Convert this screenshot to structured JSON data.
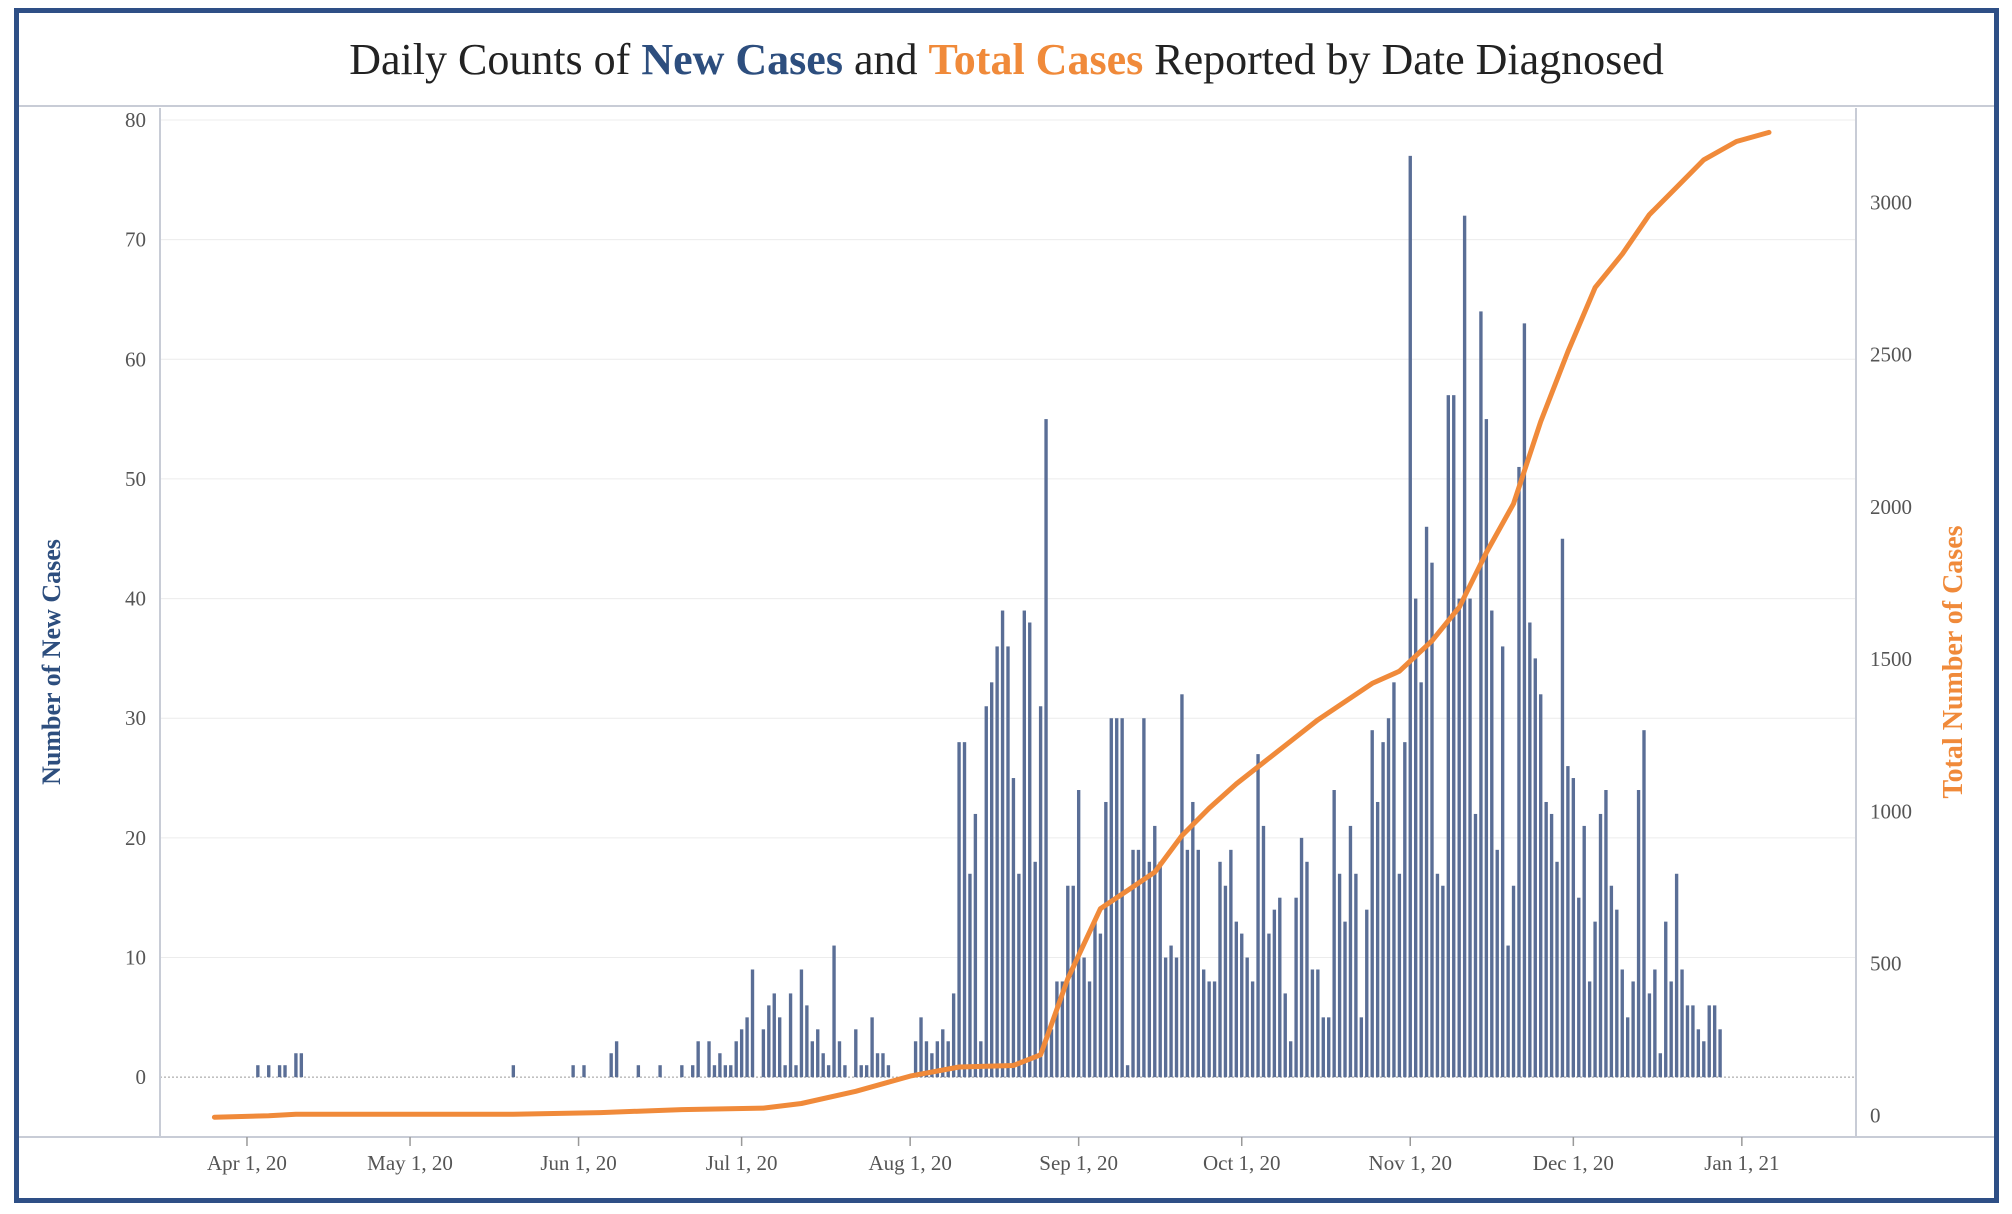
{
  "title": {
    "part1": "Daily Counts of ",
    "part2": "New Cases",
    "part3": " and ",
    "part4": "Total Cases",
    "part5": " Reported by Date Diagnosed"
  },
  "colors": {
    "bars": "#5a6e96",
    "line": "#f08a3a",
    "frame": "#2e4f86",
    "left_title": "#2d4e7e",
    "right_title": "#f08a3a"
  },
  "chart_data": {
    "type": "bar",
    "title": "Daily Counts of New Cases and Total Cases Reported by Date Diagnosed",
    "xlabel": "",
    "ylabel": "Number of New Cases",
    "y2label": "Total Number of Cases",
    "ylim": [
      -5,
      81
    ],
    "y2lim": [
      -70,
      3310
    ],
    "yticks": [
      0,
      10,
      20,
      30,
      40,
      50,
      60,
      70,
      80
    ],
    "y2ticks": [
      0,
      500,
      1000,
      1500,
      2000,
      2500,
      3000
    ],
    "xticks": [
      {
        "date": "2020-04-01",
        "label": "Apr 1, 20"
      },
      {
        "date": "2020-05-01",
        "label": "May 1, 20"
      },
      {
        "date": "2020-06-01",
        "label": "Jun 1, 20"
      },
      {
        "date": "2020-07-01",
        "label": "Jul 1, 20"
      },
      {
        "date": "2020-08-01",
        "label": "Aug 1, 20"
      },
      {
        "date": "2020-09-01",
        "label": "Sep 1, 20"
      },
      {
        "date": "2020-10-01",
        "label": "Oct 1, 20"
      },
      {
        "date": "2020-11-01",
        "label": "Nov 1, 20"
      },
      {
        "date": "2020-12-01",
        "label": "Dec 1, 20"
      },
      {
        "date": "2021-01-01",
        "label": "Jan 1, 21"
      }
    ],
    "start_date": "2020-03-26",
    "series": [
      {
        "name": "New Cases",
        "type": "bar",
        "axis": "left",
        "values": [
          0,
          0,
          0,
          0,
          0,
          0,
          0,
          0,
          1,
          0,
          1,
          0,
          1,
          1,
          0,
          2,
          2,
          0,
          0,
          0,
          0,
          0,
          0,
          0,
          0,
          0,
          0,
          0,
          0,
          0,
          0,
          0,
          0,
          0,
          0,
          0,
          0,
          0,
          0,
          0,
          0,
          0,
          0,
          0,
          0,
          0,
          0,
          0,
          0,
          0,
          0,
          0,
          0,
          0,
          0,
          1,
          0,
          0,
          0,
          0,
          0,
          0,
          0,
          0,
          0,
          0,
          1,
          0,
          1,
          0,
          0,
          0,
          0,
          2,
          3,
          0,
          0,
          0,
          1,
          0,
          0,
          0,
          1,
          0,
          0,
          0,
          1,
          0,
          1,
          3,
          0,
          3,
          1,
          2,
          1,
          1,
          3,
          4,
          5,
          9,
          0,
          4,
          6,
          7,
          5,
          1,
          7,
          1,
          9,
          6,
          3,
          4,
          2,
          1,
          11,
          3,
          1,
          0,
          4,
          1,
          1,
          5,
          2,
          2,
          1,
          0,
          0,
          0,
          0,
          3,
          5,
          3,
          2,
          3,
          4,
          3,
          7,
          28,
          28,
          17,
          22,
          3,
          31,
          33,
          36,
          39,
          36,
          25,
          17,
          39,
          38,
          18,
          31,
          55,
          4,
          8,
          8,
          16,
          16,
          24,
          10,
          8,
          13,
          12,
          23,
          30,
          30,
          30,
          1,
          19,
          19,
          30,
          18,
          21,
          18,
          10,
          11,
          10,
          32,
          19,
          23,
          19,
          9,
          8,
          8,
          18,
          16,
          19,
          13,
          12,
          10,
          8,
          27,
          21,
          12,
          14,
          15,
          7,
          3,
          15,
          20,
          18,
          9,
          9,
          5,
          5,
          24,
          17,
          13,
          21,
          17,
          5,
          14,
          29,
          23,
          28,
          30,
          33,
          17,
          28,
          77,
          40,
          33,
          46,
          43,
          17,
          16,
          57,
          57,
          40,
          72,
          40,
          22,
          64,
          55,
          39,
          19,
          36,
          11,
          16,
          51,
          63,
          38,
          35,
          32,
          23,
          22,
          18,
          45,
          26,
          25,
          15,
          21,
          8,
          13,
          22,
          24,
          16,
          14,
          9,
          5,
          8,
          24,
          29,
          7,
          9,
          2,
          13,
          8,
          17,
          9,
          6,
          6,
          4,
          3,
          6,
          6,
          4
        ]
      },
      {
        "name": "Total Cases",
        "type": "line",
        "axis": "right",
        "dates": [
          "2020-03-26",
          "2020-04-05",
          "2020-04-10",
          "2020-04-28",
          "2020-05-20",
          "2020-06-05",
          "2020-06-20",
          "2020-07-05",
          "2020-07-12",
          "2020-07-22",
          "2020-08-01",
          "2020-08-10",
          "2020-08-20",
          "2020-08-25",
          "2020-08-30",
          "2020-09-05",
          "2020-09-10",
          "2020-09-15",
          "2020-09-20",
          "2020-09-25",
          "2020-09-30",
          "2020-10-05",
          "2020-10-10",
          "2020-10-15",
          "2020-10-20",
          "2020-10-25",
          "2020-10-30",
          "2020-11-05",
          "2020-11-10",
          "2020-11-15",
          "2020-11-20",
          "2020-11-25",
          "2020-11-30",
          "2020-12-05",
          "2020-12-10",
          "2020-12-15",
          "2020-12-20",
          "2020-12-25",
          "2020-12-31",
          "2021-01-06"
        ],
        "values": [
          -5,
          0,
          5,
          5,
          5,
          10,
          20,
          25,
          40,
          80,
          130,
          160,
          165,
          200,
          450,
          680,
          740,
          800,
          920,
          1010,
          1090,
          1160,
          1230,
          1300,
          1360,
          1420,
          1460,
          1560,
          1670,
          1850,
          2010,
          2280,
          2510,
          2720,
          2830,
          2960,
          3050,
          3140,
          3200,
          3230
        ]
      }
    ],
    "grid": true,
    "legend": "title"
  },
  "axes": {
    "left_title": "Number of New Cases",
    "right_title": "Total Number of Cases"
  }
}
